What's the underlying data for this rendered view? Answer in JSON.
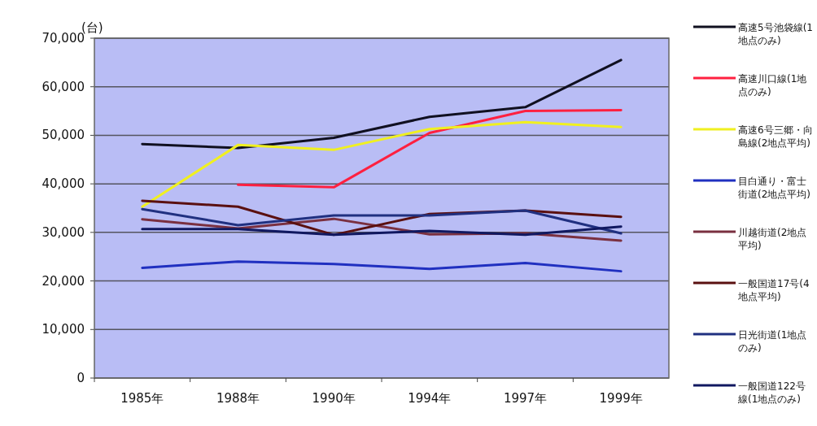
{
  "chart_data": {
    "type": "line",
    "ylabel": "(台)",
    "categories": [
      "1985年",
      "1988年",
      "1990年",
      "1994年",
      "1997年",
      "1999年"
    ],
    "ylim": [
      0,
      70000
    ],
    "yticks": [
      0,
      {
        "value": 10000,
        "label": "10,000"
      },
      {
        "value": 20000,
        "label": "20,000"
      },
      {
        "value": 30000,
        "label": "30,000"
      },
      {
        "value": 40000,
        "label": "40,000"
      },
      {
        "value": 50000,
        "label": "50,000"
      },
      {
        "value": 60000,
        "label": "60,000"
      },
      {
        "value": 70000,
        "label": "70,000"
      }
    ],
    "grid": "y",
    "legend": "right",
    "marker": "none",
    "line_style": "solid",
    "series": [
      {
        "name": "高速5号池袋線(1地点のみ)",
        "color": "#101020",
        "values": [
          48200,
          47400,
          49500,
          53800,
          55800,
          65500
        ]
      },
      {
        "name": "高速川口線(1地点のみ)",
        "color": "#ff2040",
        "values": [
          null,
          39800,
          39300,
          50500,
          55000,
          55200
        ]
      },
      {
        "name": "高速6号三郷・向島線(2地点平均)",
        "color": "#f0f020",
        "values": [
          35300,
          48000,
          47000,
          51300,
          52700,
          51700
        ]
      },
      {
        "name": "目白通り・富士街道(2地点平均)",
        "color": "#2030c0",
        "values": [
          22700,
          24000,
          23500,
          22500,
          23700,
          22000
        ]
      },
      {
        "name": "川越街道(2地点平均)",
        "color": "#7a3040",
        "values": [
          32700,
          30800,
          32800,
          29600,
          29800,
          28300
        ]
      },
      {
        "name": "一般国道17号(4地点平均)",
        "color": "#5a1010",
        "values": [
          36500,
          35300,
          29500,
          33800,
          34500,
          33200
        ]
      },
      {
        "name": "日光街道(1地点のみ)",
        "color": "#203080",
        "values": [
          34800,
          31500,
          33500,
          33500,
          34500,
          29800
        ]
      },
      {
        "name": "一般国道122号線(1地点のみ)",
        "color": "#101860",
        "values": [
          30700,
          30700,
          29500,
          30300,
          29500,
          31200
        ]
      }
    ]
  }
}
